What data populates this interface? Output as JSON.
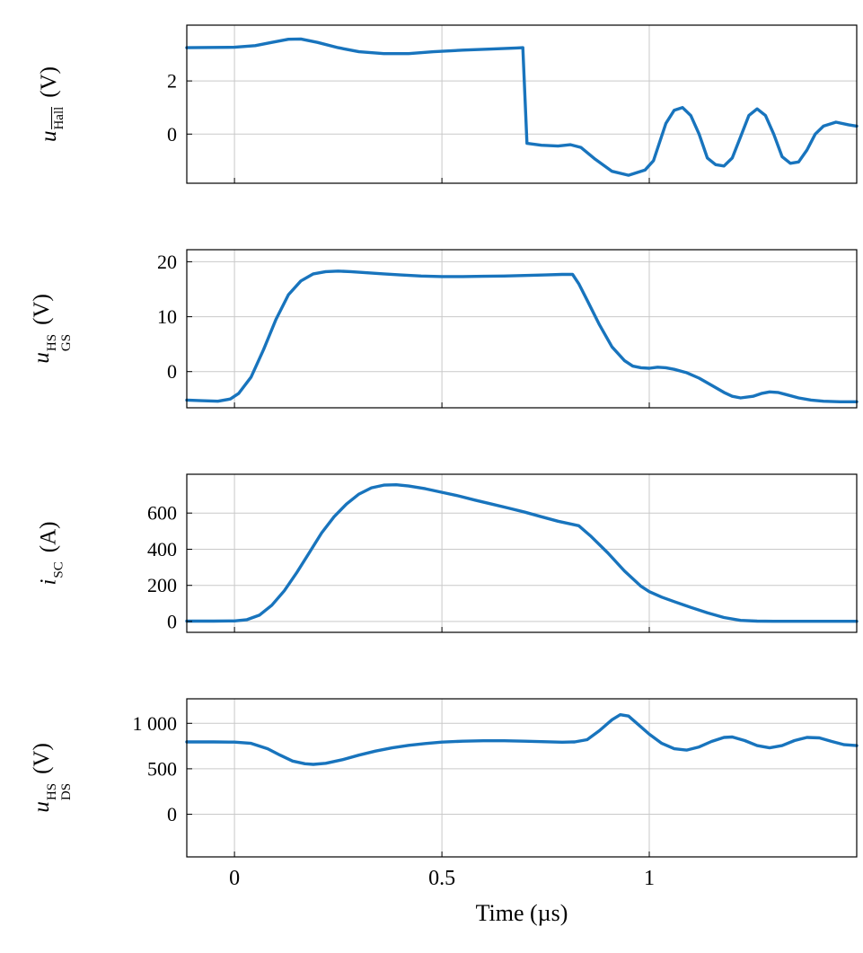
{
  "figure": {
    "xlabel": "Time (µs)",
    "line_color": "#1874bd",
    "grid_color": "#c9c9c9",
    "frame_color": "#000000"
  },
  "axis": {
    "xlim": [
      -0.115,
      1.5
    ],
    "xticks": [
      {
        "v": 0,
        "label": "0"
      },
      {
        "v": 0.5,
        "label": "0.5"
      },
      {
        "v": 1,
        "label": "1"
      }
    ],
    "grid": true
  },
  "chart_data": [
    {
      "type": "line",
      "name": "hall-sensor-voltage",
      "ylabel": {
        "base": "u",
        "sup": "",
        "sub": "Hall",
        "overline_sub": true,
        "unit": "(V)"
      },
      "ylim": [
        -1.85,
        4.1
      ],
      "yticks": [
        {
          "v": 2,
          "label": "2"
        },
        {
          "v": 0,
          "label": "0"
        }
      ],
      "show_xticklabels": false,
      "x": [
        -0.115,
        -0.05,
        0,
        0.05,
        0.09,
        0.13,
        0.16,
        0.2,
        0.25,
        0.3,
        0.36,
        0.42,
        0.48,
        0.55,
        0.62,
        0.68,
        0.695,
        0.705,
        0.74,
        0.78,
        0.81,
        0.835,
        0.87,
        0.91,
        0.95,
        0.99,
        1.01,
        1.04,
        1.06,
        1.08,
        1.1,
        1.12,
        1.14,
        1.16,
        1.18,
        1.2,
        1.22,
        1.24,
        1.26,
        1.28,
        1.3,
        1.32,
        1.34,
        1.36,
        1.38,
        1.4,
        1.42,
        1.45,
        1.48,
        1.5
      ],
      "y": [
        3.25,
        3.26,
        3.27,
        3.33,
        3.45,
        3.57,
        3.58,
        3.45,
        3.25,
        3.1,
        3.03,
        3.03,
        3.1,
        3.16,
        3.2,
        3.24,
        3.25,
        -0.35,
        -0.42,
        -0.45,
        -0.4,
        -0.5,
        -0.95,
        -1.4,
        -1.55,
        -1.35,
        -1.0,
        0.4,
        0.9,
        1.0,
        0.7,
        0.0,
        -0.9,
        -1.15,
        -1.2,
        -0.9,
        -0.1,
        0.7,
        0.95,
        0.7,
        0.0,
        -0.85,
        -1.1,
        -1.05,
        -0.6,
        0.0,
        0.3,
        0.45,
        0.35,
        0.3
      ]
    },
    {
      "type": "line",
      "name": "high-side-gate-source-voltage",
      "ylabel": {
        "base": "u",
        "sup": "HS",
        "sub": "GS",
        "overline_sub": false,
        "unit": "(V)"
      },
      "ylim": [
        -6.6,
        22.2
      ],
      "yticks": [
        {
          "v": 20,
          "label": "20"
        },
        {
          "v": 10,
          "label": "10"
        },
        {
          "v": 0,
          "label": "0"
        }
      ],
      "show_xticklabels": false,
      "x": [
        -0.115,
        -0.08,
        -0.04,
        -0.01,
        0.01,
        0.04,
        0.07,
        0.1,
        0.13,
        0.16,
        0.19,
        0.22,
        0.25,
        0.28,
        0.32,
        0.36,
        0.4,
        0.45,
        0.5,
        0.55,
        0.6,
        0.65,
        0.7,
        0.75,
        0.79,
        0.815,
        0.83,
        0.85,
        0.88,
        0.91,
        0.94,
        0.96,
        0.98,
        1.0,
        1.02,
        1.04,
        1.06,
        1.09,
        1.12,
        1.15,
        1.18,
        1.2,
        1.22,
        1.25,
        1.27,
        1.29,
        1.31,
        1.33,
        1.36,
        1.39,
        1.42,
        1.46,
        1.5
      ],
      "y": [
        -5.2,
        -5.3,
        -5.4,
        -5.0,
        -4.0,
        -1.0,
        4.0,
        9.5,
        14.0,
        16.5,
        17.8,
        18.2,
        18.3,
        18.2,
        18.0,
        17.8,
        17.6,
        17.4,
        17.3,
        17.3,
        17.35,
        17.4,
        17.5,
        17.6,
        17.7,
        17.7,
        16.0,
        13.0,
        8.5,
        4.5,
        2.0,
        1.0,
        0.7,
        0.6,
        0.8,
        0.7,
        0.4,
        -0.2,
        -1.2,
        -2.5,
        -3.8,
        -4.5,
        -4.8,
        -4.5,
        -4.0,
        -3.7,
        -3.8,
        -4.2,
        -4.8,
        -5.2,
        -5.4,
        -5.5,
        -5.5
      ]
    },
    {
      "type": "line",
      "name": "short-circuit-current",
      "ylabel": {
        "base": "i",
        "sup": "",
        "sub": "SC",
        "overline_sub": false,
        "unit": "(A)"
      },
      "ylim": [
        -60,
        815
      ],
      "yticks": [
        {
          "v": 600,
          "label": "600"
        },
        {
          "v": 400,
          "label": "400"
        },
        {
          "v": 200,
          "label": "200"
        },
        {
          "v": 0,
          "label": "0"
        }
      ],
      "show_xticklabels": false,
      "x": [
        -0.115,
        -0.05,
        0,
        0.03,
        0.06,
        0.09,
        0.12,
        0.15,
        0.18,
        0.21,
        0.24,
        0.27,
        0.3,
        0.33,
        0.36,
        0.39,
        0.42,
        0.46,
        0.5,
        0.54,
        0.58,
        0.62,
        0.66,
        0.7,
        0.74,
        0.78,
        0.81,
        0.83,
        0.86,
        0.9,
        0.94,
        0.98,
        1.0,
        1.03,
        1.06,
        1.1,
        1.14,
        1.18,
        1.22,
        1.26,
        1.3,
        1.36,
        1.43,
        1.5
      ],
      "y": [
        2,
        2,
        3,
        10,
        35,
        90,
        170,
        270,
        380,
        490,
        580,
        650,
        705,
        740,
        755,
        757,
        750,
        735,
        715,
        695,
        672,
        650,
        628,
        605,
        580,
        555,
        540,
        530,
        470,
        380,
        280,
        195,
        165,
        135,
        110,
        78,
        48,
        22,
        6,
        2,
        1,
        1,
        1,
        1
      ]
    },
    {
      "type": "line",
      "name": "high-side-drain-source-voltage",
      "ylabel": {
        "base": "u",
        "sup": "HS",
        "sub": "DS",
        "overline_sub": false,
        "unit": "(V)"
      },
      "ylim": [
        -470,
        1270
      ],
      "yticks": [
        {
          "v": 1000,
          "label": "1 000"
        },
        {
          "v": 500,
          "label": "500"
        },
        {
          "v": 0,
          "label": "0"
        }
      ],
      "show_xticklabels": true,
      "x": [
        -0.115,
        -0.05,
        0,
        0.04,
        0.08,
        0.11,
        0.14,
        0.17,
        0.19,
        0.22,
        0.26,
        0.3,
        0.34,
        0.38,
        0.42,
        0.46,
        0.5,
        0.55,
        0.6,
        0.65,
        0.7,
        0.75,
        0.79,
        0.82,
        0.85,
        0.88,
        0.91,
        0.93,
        0.95,
        0.97,
        1.0,
        1.03,
        1.06,
        1.09,
        1.12,
        1.15,
        1.18,
        1.2,
        1.23,
        1.26,
        1.29,
        1.32,
        1.35,
        1.38,
        1.41,
        1.44,
        1.47,
        1.5
      ],
      "y": [
        795,
        795,
        793,
        780,
        720,
        650,
        585,
        555,
        548,
        560,
        600,
        650,
        695,
        730,
        758,
        778,
        793,
        803,
        808,
        808,
        803,
        797,
        792,
        795,
        820,
        920,
        1040,
        1095,
        1080,
        1000,
        880,
        780,
        720,
        705,
        740,
        800,
        845,
        850,
        810,
        755,
        730,
        755,
        810,
        845,
        840,
        800,
        765,
        755
      ]
    }
  ]
}
